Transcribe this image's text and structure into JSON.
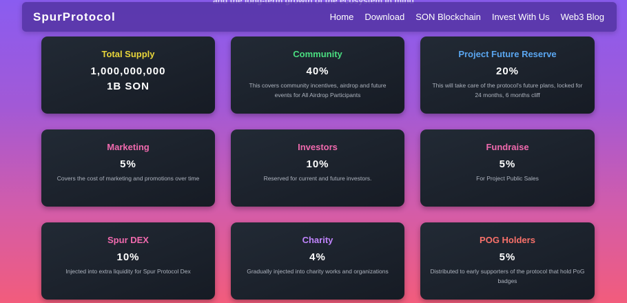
{
  "background_text": "and the long-term growth of the ecosystem in mind",
  "nav": {
    "logo": "SpurProtocol",
    "links": [
      "Home",
      "Download",
      "SON Blockchain",
      "Invest With Us",
      "Web3 Blog"
    ]
  },
  "cards": [
    {
      "title": "Total Supply",
      "value": "1,000,000,000",
      "value2": "1B SON",
      "desc": "",
      "color": "#e8d53a"
    },
    {
      "title": "Community",
      "value": "40%",
      "desc": "This covers community incentives, airdrop and future events for All Airdrop Participants",
      "color": "#4ade80"
    },
    {
      "title": "Project Future Reserve",
      "value": "20%",
      "desc": "This will take care of the protocol's future plans, locked for 24 months, 6 months cliff",
      "color": "#5aa6f0"
    },
    {
      "title": "Marketing",
      "value": "5%",
      "desc": "Covers the cost of marketing and promotions over time",
      "color": "#f06aae"
    },
    {
      "title": "Investors",
      "value": "10%",
      "desc": "Reserved for current and future investors.",
      "color": "#f06aae"
    },
    {
      "title": "Fundraise",
      "value": "5%",
      "desc": "For Project Public Sales",
      "color": "#f06aae"
    },
    {
      "title": "Spur DEX",
      "value": "10%",
      "desc": "Injected into extra liquidity for Spur Protocol Dex",
      "color": "#f06aae"
    },
    {
      "title": "Charity",
      "value": "4%",
      "desc": "Gradually injected into charity works and organizations",
      "color": "#c084fc"
    },
    {
      "title": "POG Holders",
      "value": "5%",
      "desc": "Distributed to early supporters of the protocol that hold PoG badges",
      "color": "#f8716a"
    }
  ]
}
